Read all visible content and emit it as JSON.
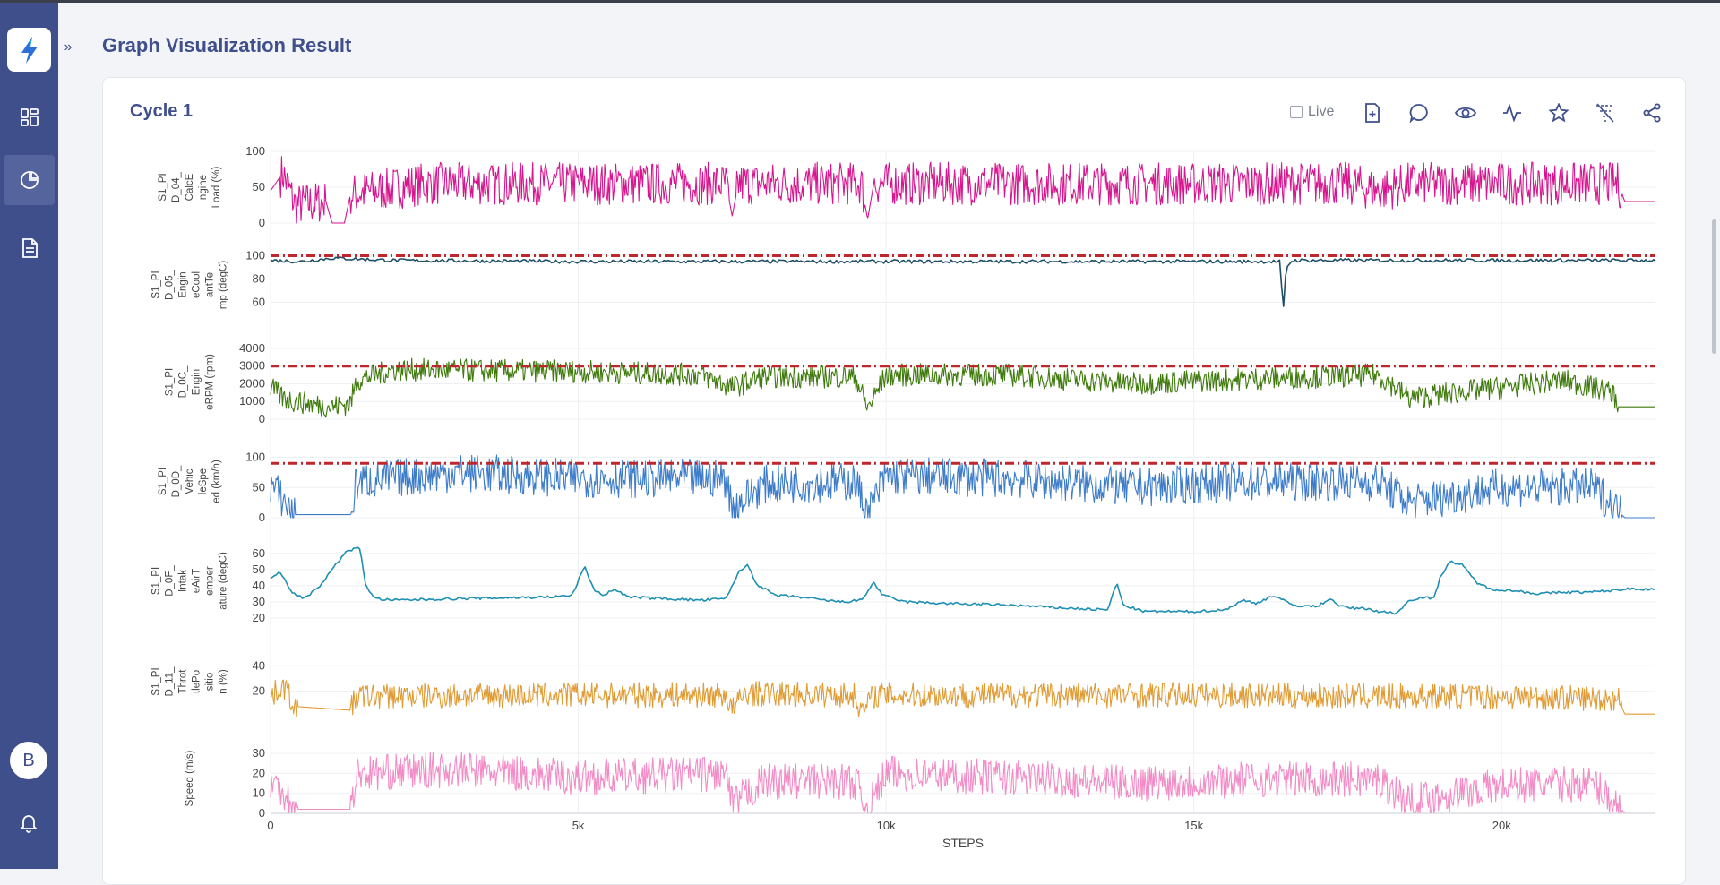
{
  "page_title": "Graph Visualization Result",
  "card_title": "Cycle 1",
  "live_label": "Live",
  "user_initial": "B",
  "icons": {
    "logo": "bolt-logo-icon",
    "nav": [
      "dashboard-icon",
      "pie-chart-icon",
      "document-icon"
    ],
    "tools": [
      "add-file-icon",
      "comment-icon",
      "eye-icon",
      "activity-icon",
      "star-icon",
      "filter-off-icon",
      "share-icon"
    ]
  },
  "colors": {
    "sidebar": "#3f4f8c",
    "accent": "#3f4f8c",
    "threshold": "#c0272d"
  },
  "chart_data": {
    "type": "line",
    "xlabel": "STEPS",
    "xlim": [
      0,
      22500
    ],
    "xticks": [
      0,
      5000,
      10000,
      15000,
      20000
    ],
    "xtick_labels": [
      "0",
      "5k",
      "10k",
      "15k",
      "20k"
    ],
    "panels": [
      {
        "name": "S1_PID_04_CalcEngine Load (%)",
        "ylabel_lines": [
          "S1_PI",
          "D_04_",
          "CalcE",
          "ngine",
          "Load (%)"
        ],
        "color": "#d6168f",
        "ylim": [
          0,
          100
        ],
        "yticks": [
          0,
          50,
          100
        ],
        "threshold": null,
        "style": "noisy",
        "points": [
          [
            0,
            45
          ],
          [
            200,
            70
          ],
          [
            400,
            25
          ],
          [
            900,
            30
          ],
          [
            1000,
            0
          ],
          [
            1200,
            0
          ],
          [
            1300,
            40
          ],
          [
            2500,
            55
          ],
          [
            5000,
            55
          ],
          [
            7400,
            55
          ],
          [
            7500,
            10
          ],
          [
            7600,
            55
          ],
          [
            9600,
            55
          ],
          [
            9700,
            5
          ],
          [
            9800,
            55
          ],
          [
            15000,
            55
          ],
          [
            17500,
            55
          ],
          [
            18000,
            45
          ],
          [
            18500,
            55
          ],
          [
            20000,
            55
          ],
          [
            21900,
            55
          ],
          [
            22000,
            30
          ],
          [
            22500,
            30
          ]
        ],
        "amplitude": 30,
        "quiet": [
          [
            0,
            150
          ],
          [
            900,
            1300
          ],
          [
            7450,
            7560
          ],
          [
            9650,
            9800
          ],
          [
            21950,
            22500
          ]
        ]
      },
      {
        "name": "S1_PID_05_EngineCoolantTemp (degC)",
        "ylabel_lines": [
          "S1_PI",
          "D_05_",
          "Engin",
          "eCool",
          "antTe",
          "mp (degC)"
        ],
        "color": "#1f4e66",
        "ylim": [
          45,
          105
        ],
        "yticks": [
          60,
          80,
          100
        ],
        "threshold": 100,
        "style": "smooth",
        "points": [
          [
            0,
            96
          ],
          [
            500,
            95
          ],
          [
            1000,
            98
          ],
          [
            2000,
            96
          ],
          [
            5000,
            95
          ],
          [
            9000,
            95
          ],
          [
            10000,
            95
          ],
          [
            15000,
            95
          ],
          [
            16400,
            95
          ],
          [
            16450,
            50
          ],
          [
            16500,
            90
          ],
          [
            16600,
            96
          ],
          [
            19000,
            96
          ],
          [
            22500,
            96
          ]
        ],
        "amplitude": 1.5,
        "quiet": []
      },
      {
        "name": "S1_PID_0C_EngineRPM (rpm)",
        "ylabel_lines": [
          "S1_PI",
          "D_0C_",
          "Engin",
          "eRPM (rpm)"
        ],
        "color": "#3f7a0c",
        "ylim": [
          0,
          4200
        ],
        "yticks": [
          0,
          1000,
          2000,
          3000,
          4000
        ],
        "threshold": 3000,
        "style": "noisy",
        "points": [
          [
            0,
            1800
          ],
          [
            200,
            1200
          ],
          [
            400,
            1000
          ],
          [
            1000,
            700
          ],
          [
            1300,
            900
          ],
          [
            1400,
            2200
          ],
          [
            2000,
            2800
          ],
          [
            5000,
            2700
          ],
          [
            7000,
            2500
          ],
          [
            7500,
            1800
          ],
          [
            8000,
            2400
          ],
          [
            9500,
            2400
          ],
          [
            9700,
            600
          ],
          [
            10000,
            2500
          ],
          [
            12000,
            2500
          ],
          [
            14000,
            2000
          ],
          [
            16000,
            2300
          ],
          [
            18000,
            2500
          ],
          [
            18500,
            1200
          ],
          [
            20000,
            1800
          ],
          [
            21000,
            2200
          ],
          [
            21800,
            1500
          ],
          [
            21900,
            700
          ],
          [
            22500,
            700
          ]
        ],
        "amplitude": 650,
        "quiet": [
          [
            21900,
            22500
          ]
        ]
      },
      {
        "name": "S1_PID_0D_VehicleSpeed (km/h)",
        "ylabel_lines": [
          "S1_PI",
          "D_0D_",
          "Vehic",
          "leSpe",
          "ed (km/h)"
        ],
        "color": "#3d7cc9",
        "ylim": [
          0,
          120
        ],
        "yticks": [
          0,
          50,
          100
        ],
        "threshold": 90,
        "style": "noisy",
        "points": [
          [
            0,
            55
          ],
          [
            200,
            30
          ],
          [
            400,
            5
          ],
          [
            1300,
            5
          ],
          [
            1400,
            60
          ],
          [
            3000,
            75
          ],
          [
            5000,
            65
          ],
          [
            7400,
            65
          ],
          [
            7500,
            15
          ],
          [
            8000,
            55
          ],
          [
            9500,
            60
          ],
          [
            9700,
            5
          ],
          [
            10000,
            70
          ],
          [
            12000,
            65
          ],
          [
            14000,
            50
          ],
          [
            16000,
            60
          ],
          [
            18000,
            60
          ],
          [
            18500,
            25
          ],
          [
            20000,
            50
          ],
          [
            21500,
            50
          ],
          [
            21900,
            10
          ],
          [
            22000,
            0
          ],
          [
            22500,
            0
          ]
        ],
        "amplitude": 32,
        "quiet": [
          [
            400,
            1300
          ],
          [
            21950,
            22500
          ]
        ]
      },
      {
        "name": "S1_PID_0F_IntakeAirTemperature (degC)",
        "ylabel_lines": [
          "S1_PI",
          "D_0F_",
          "Intak",
          "eAirT",
          "emper",
          "ature (degC)"
        ],
        "color": "#1d8fb3",
        "ylim": [
          20,
          66
        ],
        "yticks": [
          20,
          30,
          40,
          50,
          60
        ],
        "threshold": null,
        "style": "smooth",
        "points": [
          [
            0,
            45
          ],
          [
            150,
            49
          ],
          [
            350,
            36
          ],
          [
            550,
            32
          ],
          [
            800,
            40
          ],
          [
            1100,
            55
          ],
          [
            1200,
            60
          ],
          [
            1350,
            63
          ],
          [
            1450,
            63
          ],
          [
            1550,
            40
          ],
          [
            1700,
            32
          ],
          [
            2000,
            31
          ],
          [
            3000,
            32
          ],
          [
            4500,
            33
          ],
          [
            4900,
            34
          ],
          [
            5100,
            52
          ],
          [
            5250,
            38
          ],
          [
            5400,
            34
          ],
          [
            5600,
            38
          ],
          [
            5800,
            33
          ],
          [
            7000,
            31
          ],
          [
            7400,
            32
          ],
          [
            7600,
            48
          ],
          [
            7750,
            53
          ],
          [
            7900,
            41
          ],
          [
            8200,
            34
          ],
          [
            8600,
            33
          ],
          [
            9000,
            31
          ],
          [
            9300,
            30
          ],
          [
            9600,
            31
          ],
          [
            9800,
            42
          ],
          [
            9950,
            34
          ],
          [
            10300,
            30
          ],
          [
            11000,
            29
          ],
          [
            12000,
            28
          ],
          [
            13000,
            26
          ],
          [
            13600,
            25
          ],
          [
            13750,
            42
          ],
          [
            13850,
            28
          ],
          [
            14200,
            24
          ],
          [
            15000,
            24
          ],
          [
            15500,
            25
          ],
          [
            15800,
            31
          ],
          [
            16000,
            29
          ],
          [
            16300,
            34
          ],
          [
            16600,
            28
          ],
          [
            17000,
            27
          ],
          [
            17200,
            32
          ],
          [
            17400,
            27
          ],
          [
            17600,
            26
          ],
          [
            17800,
            26
          ],
          [
            18000,
            24
          ],
          [
            18300,
            23
          ],
          [
            18500,
            31
          ],
          [
            18700,
            33
          ],
          [
            18900,
            32
          ],
          [
            19000,
            45
          ],
          [
            19150,
            55
          ],
          [
            19350,
            53
          ],
          [
            19600,
            42
          ],
          [
            19800,
            38
          ],
          [
            20200,
            37
          ],
          [
            20600,
            35
          ],
          [
            21000,
            36
          ],
          [
            21400,
            36
          ],
          [
            21800,
            37
          ],
          [
            22000,
            38
          ],
          [
            22500,
            38
          ]
        ],
        "amplitude": 0.8,
        "quiet": []
      },
      {
        "name": "S1_PID_11_ThrottlePosition (%)",
        "ylabel_lines": [
          "S1_PI",
          "D_11_",
          "Throt",
          "tlePo",
          "sitio",
          "n (%)"
        ],
        "color": "#e09b33",
        "ylim": [
          0,
          55
        ],
        "yticks": [
          20,
          40
        ],
        "threshold": null,
        "style": "noisy",
        "points": [
          [
            0,
            15
          ],
          [
            200,
            25
          ],
          [
            400,
            8
          ],
          [
            1300,
            5
          ],
          [
            1400,
            16
          ],
          [
            5000,
            17
          ],
          [
            7400,
            17
          ],
          [
            7500,
            5
          ],
          [
            7700,
            18
          ],
          [
            9500,
            17
          ],
          [
            9600,
            3
          ],
          [
            9800,
            17
          ],
          [
            15000,
            17
          ],
          [
            18000,
            16
          ],
          [
            20000,
            16
          ],
          [
            21900,
            14
          ],
          [
            22000,
            2
          ],
          [
            22500,
            2
          ]
        ],
        "amplitude": 10,
        "quiet": [
          [
            450,
            1300
          ],
          [
            21950,
            22500
          ]
        ]
      },
      {
        "name": "Speed (m/s)",
        "ylabel_lines": [
          "Speed (m/s)"
        ],
        "color": "#f38bc6",
        "ylim": [
          0,
          35
        ],
        "yticks": [
          0,
          10,
          20,
          30
        ],
        "threshold": null,
        "style": "noisy",
        "points": [
          [
            0,
            15
          ],
          [
            200,
            12
          ],
          [
            400,
            2
          ],
          [
            1300,
            2
          ],
          [
            1400,
            20
          ],
          [
            3000,
            22
          ],
          [
            5000,
            18
          ],
          [
            7400,
            20
          ],
          [
            7500,
            4
          ],
          [
            8000,
            16
          ],
          [
            9500,
            16
          ],
          [
            9700,
            2
          ],
          [
            10000,
            20
          ],
          [
            12000,
            18
          ],
          [
            14000,
            15
          ],
          [
            16000,
            17
          ],
          [
            18000,
            17
          ],
          [
            18500,
            6
          ],
          [
            20000,
            14
          ],
          [
            21500,
            15
          ],
          [
            21900,
            4
          ],
          [
            22000,
            0
          ],
          [
            22500,
            0
          ]
        ],
        "amplitude": 9,
        "quiet": [
          [
            450,
            1300
          ],
          [
            21950,
            22500
          ]
        ]
      }
    ]
  }
}
